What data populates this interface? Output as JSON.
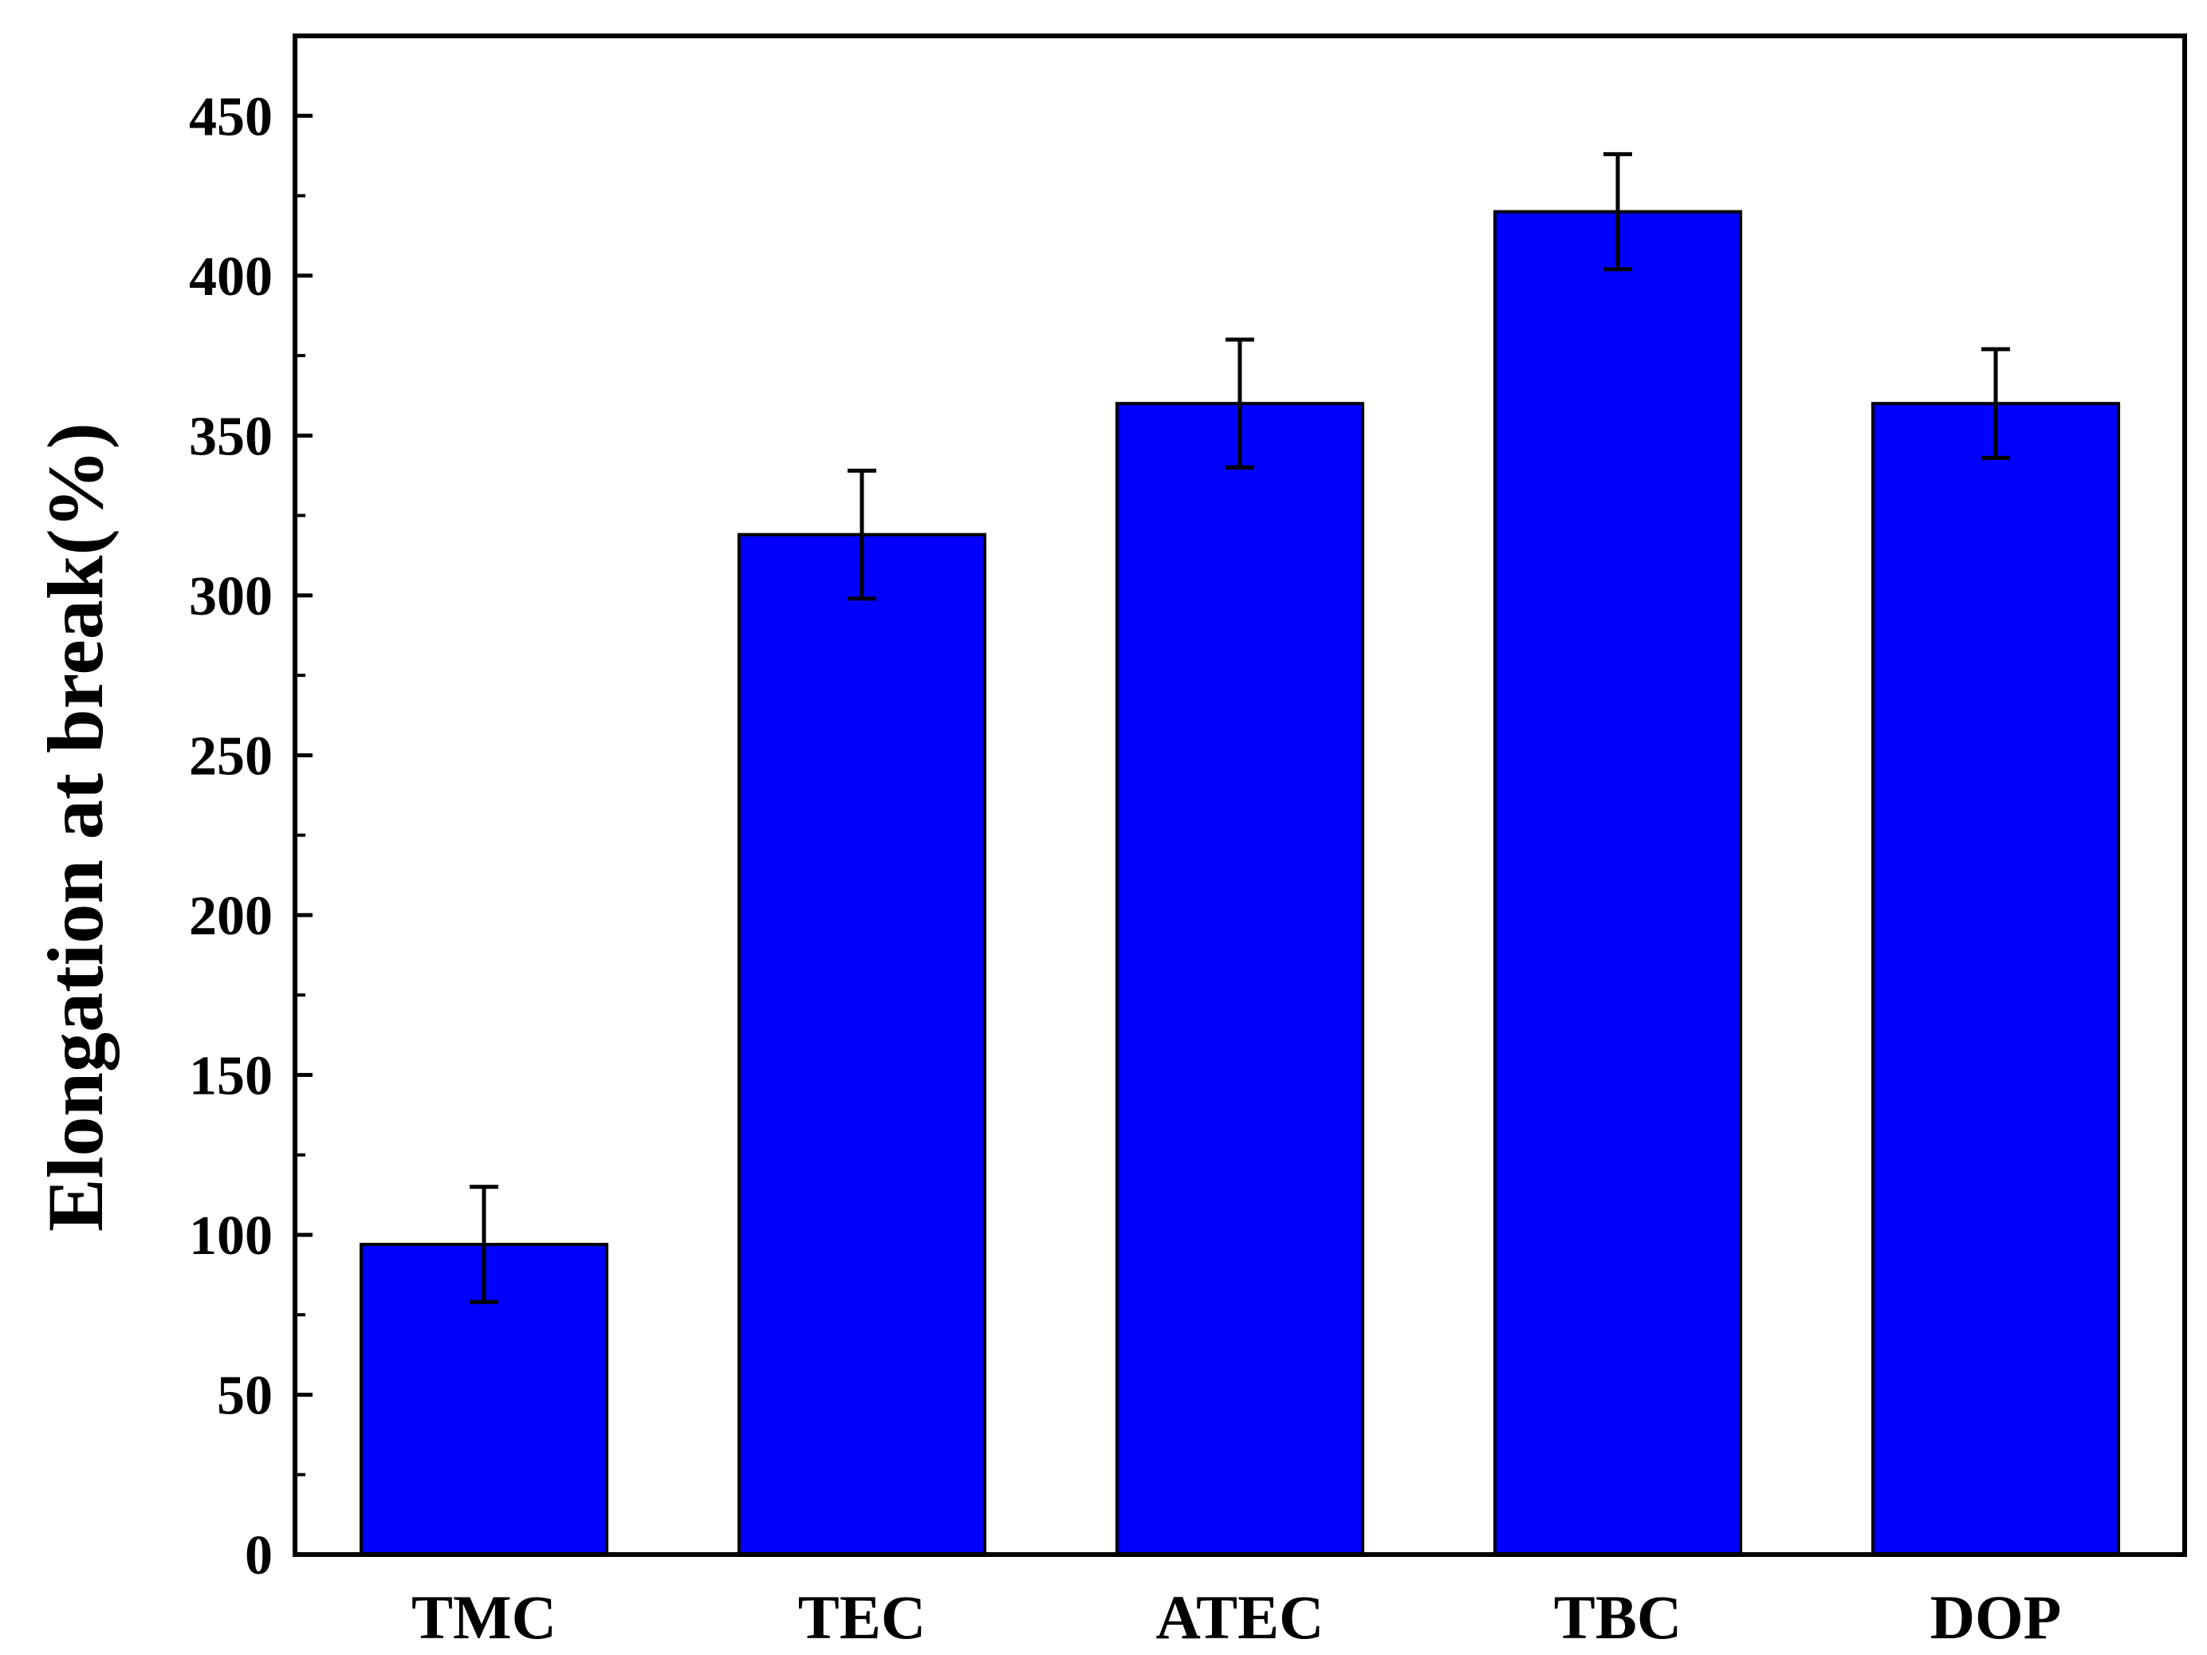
{
  "chart_data": {
    "type": "bar",
    "title": "",
    "xlabel": "",
    "ylabel": "Elongation at break(%)",
    "categories": [
      "TMC",
      "TEC",
      "ATEC",
      "TBC",
      "DOP"
    ],
    "values": [
      97,
      319,
      360,
      420,
      360
    ],
    "errors": [
      18,
      20,
      20,
      18,
      17
    ],
    "ylim": [
      0,
      475
    ],
    "yticks": [
      0,
      50,
      100,
      150,
      200,
      250,
      300,
      350,
      400,
      450
    ],
    "yticklabels": [
      "0",
      "50",
      "100",
      "150",
      "200",
      "250",
      "300",
      "350",
      "400",
      "450"
    ],
    "minor_ytick_step": 25,
    "grid": false,
    "legend": false,
    "bar_color": "#0000ff",
    "edge_color": "#000000"
  }
}
